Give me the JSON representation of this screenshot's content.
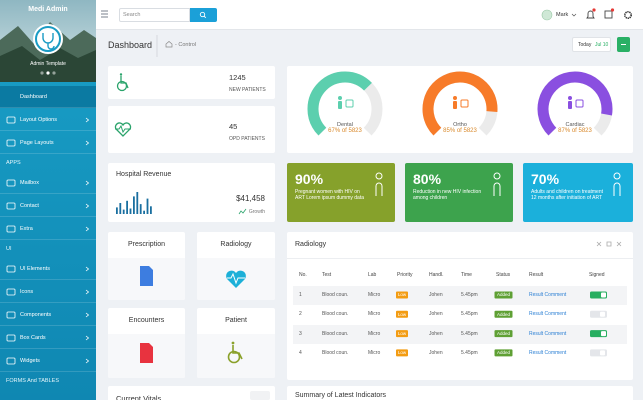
{
  "sidebar": {
    "brand": "Medi Admin",
    "tagline": "Admin Template",
    "groups": [
      {
        "items": [
          "Dashboard",
          "Layout Options",
          "Page Layouts"
        ]
      },
      {
        "heading": "APPS",
        "items": [
          "Mailbox",
          "Contact",
          "Extra"
        ]
      },
      {
        "heading": "UI",
        "items": [
          "UI Elements",
          "Icons",
          "Components",
          "Box Cards",
          "Widgets"
        ]
      },
      {
        "heading": "FORMS And TABLES",
        "items": []
      }
    ]
  },
  "topbar": {
    "search_placeholder": "Search",
    "user": "Mark"
  },
  "page": {
    "title": "Dashboard",
    "breadcrumb": "- Control",
    "date_label": "Today",
    "date": "Jul 10"
  },
  "stats": [
    {
      "value": 1245,
      "label": "NEW PATIENTS"
    },
    {
      "value": 45,
      "label": "OPD PATIENTS"
    }
  ],
  "gauges": {
    "range": [
      0,
      100
    ],
    "items": [
      {
        "name": "Dental",
        "value": 67,
        "label": "67% of 5823",
        "color": "#5ccfae"
      },
      {
        "name": "Ortho",
        "value": 85,
        "label": "85% of 5823",
        "color": "#f77b29"
      },
      {
        "name": "Cardiac",
        "value": 87,
        "label": "87% of 5823",
        "color": "#8a4fe0"
      }
    ]
  },
  "revenue": {
    "title": "Hospital Revenue",
    "amount": "$41,458",
    "trend": "Growth",
    "ylim": [
      0,
      20
    ],
    "bars": [
      6,
      10,
      4,
      12,
      5,
      16,
      20,
      9,
      3,
      14,
      7
    ],
    "color": "#1a6fa0"
  },
  "highlights": [
    {
      "value": "90%",
      "text": "Pregnant women with HIV on ART Lorem ipsum dummy data",
      "color": "#86a12b"
    },
    {
      "value": "80%",
      "text": "Reduction in new HIV infection among children",
      "color": "#3da34d"
    },
    {
      "value": "70%",
      "text": "Adults and children on treatment 12 months after initiation of ART",
      "color": "#1bb0db"
    }
  ],
  "tiles": [
    "Prescription",
    "Radiology",
    "Encounters",
    "Patient"
  ],
  "radiology": {
    "title": "Radiology",
    "columns": [
      "No.",
      "Test",
      "Lab",
      "Priority",
      "Handl.",
      "Time",
      "Status",
      "Result",
      "Signed"
    ],
    "rows": [
      {
        "cells": [
          1,
          "Blood coun.",
          "Micro",
          "Low",
          "Johen",
          "5.45pm",
          "Added",
          "Result Comment"
        ],
        "signed": true
      },
      {
        "cells": [
          2,
          "Blood coun.",
          "Micro",
          "Low",
          "Johen",
          "5.45pm",
          "Added",
          "Result Comment"
        ],
        "signed": false
      },
      {
        "cells": [
          3,
          "Blood coun.",
          "Micro",
          "Low",
          "Johen",
          "5.45pm",
          "Added",
          "Result Comment"
        ],
        "signed": true
      },
      {
        "cells": [
          4,
          "Blood coun.",
          "Micro",
          "Low",
          "Johen",
          "5.45pm",
          "Added",
          "Result Comment"
        ],
        "signed": false
      }
    ]
  },
  "bottom": {
    "vitals": "Current Vitals",
    "summary": "Summary of Latest Indicators"
  }
}
